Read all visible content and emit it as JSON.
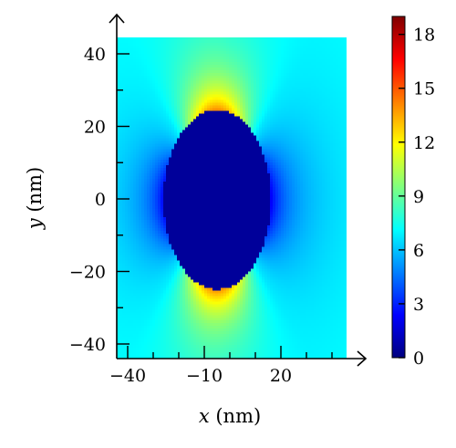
{
  "chart_data": {
    "type": "heatmap",
    "title": "",
    "xlabel_var": "x",
    "xlabel_unit": " (nm)",
    "ylabel_var": "y",
    "ylabel_unit": " (nm)",
    "xlim": [
      -45,
      45
    ],
    "ylim": [
      -45,
      45
    ],
    "x_ticks": [
      {
        "value": -40,
        "label": "−40"
      },
      {
        "value": -10,
        "label": "−10"
      },
      {
        "value": 20,
        "label": "20"
      }
    ],
    "y_ticks": [
      {
        "value": 40,
        "label": "40"
      },
      {
        "value": 20,
        "label": "20"
      },
      {
        "value": 0,
        "label": "0"
      },
      {
        "value": -20,
        "label": "−20"
      },
      {
        "value": -40,
        "label": "−40"
      }
    ],
    "colorbar": {
      "min": 0,
      "max": 19,
      "colormap": "jet",
      "ticks": [
        {
          "value": 0,
          "label": "0"
        },
        {
          "value": 3,
          "label": "3"
        },
        {
          "value": 6,
          "label": "6"
        },
        {
          "value": 9,
          "label": "9"
        },
        {
          "value": 12,
          "label": "12"
        },
        {
          "value": 15,
          "label": "15"
        },
        {
          "value": 18,
          "label": "18"
        }
      ]
    },
    "field": {
      "description_values": "electric field enhancement around an elliptical particle",
      "particle_center": [
        -5,
        0
      ],
      "particle_semi_axis_x": 21,
      "particle_semi_axis_y": 25,
      "inside_value": 0.5,
      "background_value": 6.5,
      "pole_max_value": 14,
      "side_min_value": 2
    },
    "colors": {
      "axis": "#000000",
      "background": "#ffffff"
    }
  }
}
